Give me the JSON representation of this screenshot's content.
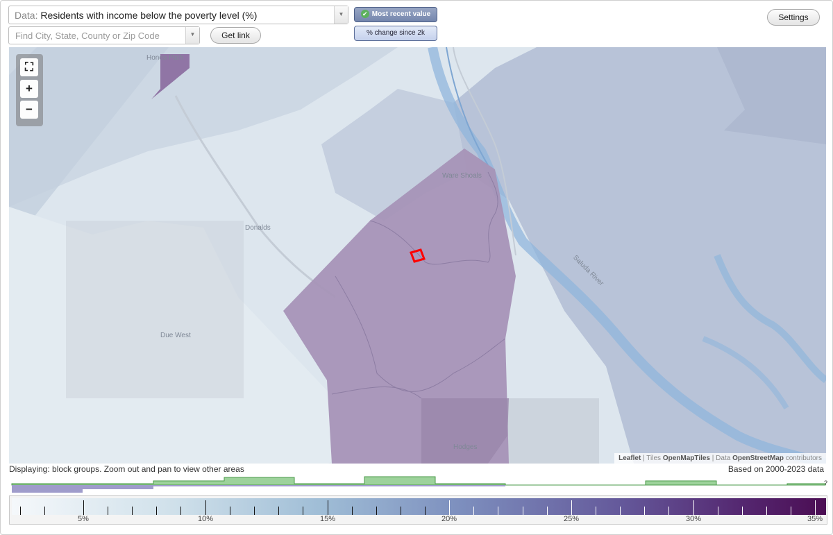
{
  "header": {
    "data_prefix": "Data:",
    "data_value": "Residents with income below the poverty level (%)",
    "search_placeholder": "Find City, State, County or Zip Code",
    "get_link_label": "Get link",
    "settings_label": "Settings",
    "mode_recent_label": "Most recent value",
    "mode_change_label": "% change since 2k"
  },
  "map": {
    "labels": {
      "honea_path": "Honea Path",
      "ware_shoals": "Ware Shoals",
      "donalds": "Donalds",
      "due_west": "Due West",
      "hodges": "Hodges",
      "saluda_river": "Saluda River"
    },
    "attribution": {
      "leaflet": "Leaflet",
      "tiles_prefix": "| Tiles",
      "tiles": "OpenMapTiles",
      "data_prefix": "| Data",
      "osm": "OpenStreetMap",
      "contributors": "contributors"
    }
  },
  "status": {
    "displaying": "Displaying: block groups. Zoom out and pan to view other areas",
    "based_on": "Based on 2000-2023 data",
    "histogram_unknown": "?"
  },
  "legend": {
    "tick_labels": [
      "5%",
      "10%",
      "15%",
      "20%",
      "25%",
      "30%",
      "35%"
    ],
    "colors": {
      "low": "#f5f8fb",
      "mid": "#7d8fbe",
      "high": "#4b0d53",
      "histogram_green": "#9dd29b",
      "histogram_purple": "#9f9ccb",
      "selected_outline": "#ff0000"
    }
  }
}
